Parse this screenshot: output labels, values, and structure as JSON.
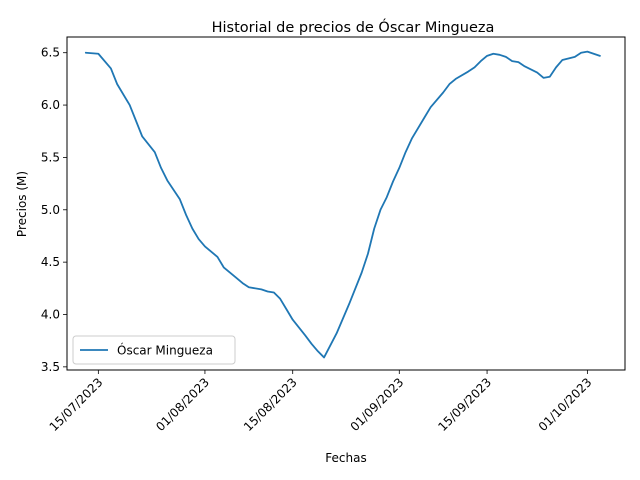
{
  "chart_data": {
    "type": "line",
    "title": "Historial de precios de Óscar Mingueza",
    "xlabel": "Fechas",
    "ylabel": "Precios (M)",
    "x_axis_type": "date",
    "x_range": [
      "2023-07-10",
      "2023-10-07"
    ],
    "ylim": [
      3.47,
      6.65
    ],
    "x_ticks": [
      {
        "date": "2023-07-15",
        "label": "15/07/2023"
      },
      {
        "date": "2023-08-01",
        "label": "01/08/2023"
      },
      {
        "date": "2023-08-15",
        "label": "15/08/2023"
      },
      {
        "date": "2023-09-01",
        "label": "01/09/2023"
      },
      {
        "date": "2023-09-15",
        "label": "15/09/2023"
      },
      {
        "date": "2023-10-01",
        "label": "01/10/2023"
      }
    ],
    "y_ticks": [
      {
        "value": 3.5,
        "label": "3.5"
      },
      {
        "value": 4.0,
        "label": "4.0"
      },
      {
        "value": 4.5,
        "label": "4.5"
      },
      {
        "value": 5.0,
        "label": "5.0"
      },
      {
        "value": 5.5,
        "label": "5.5"
      },
      {
        "value": 6.0,
        "label": "6.0"
      },
      {
        "value": 6.5,
        "label": "6.5"
      }
    ],
    "grid": false,
    "legend_position": "lower-left",
    "series": [
      {
        "name": "Óscar Mingueza",
        "color": "#1f77b4",
        "points": [
          [
            "2023-07-13",
            6.5
          ],
          [
            "2023-07-15",
            6.49
          ],
          [
            "2023-07-17",
            6.35
          ],
          [
            "2023-07-18",
            6.2
          ],
          [
            "2023-07-20",
            6.0
          ],
          [
            "2023-07-21",
            5.85
          ],
          [
            "2023-07-22",
            5.7
          ],
          [
            "2023-07-24",
            5.55
          ],
          [
            "2023-07-25",
            5.4
          ],
          [
            "2023-07-26",
            5.28
          ],
          [
            "2023-07-28",
            5.1
          ],
          [
            "2023-07-29",
            4.95
          ],
          [
            "2023-07-30",
            4.82
          ],
          [
            "2023-07-31",
            4.72
          ],
          [
            "2023-08-01",
            4.65
          ],
          [
            "2023-08-03",
            4.55
          ],
          [
            "2023-08-04",
            4.45
          ],
          [
            "2023-08-06",
            4.35
          ],
          [
            "2023-08-07",
            4.3
          ],
          [
            "2023-08-08",
            4.26
          ],
          [
            "2023-08-10",
            4.24
          ],
          [
            "2023-08-11",
            4.22
          ],
          [
            "2023-08-12",
            4.21
          ],
          [
            "2023-08-13",
            4.15
          ],
          [
            "2023-08-14",
            4.05
          ],
          [
            "2023-08-15",
            3.95
          ],
          [
            "2023-08-17",
            3.8
          ],
          [
            "2023-08-18",
            3.72
          ],
          [
            "2023-08-19",
            3.65
          ],
          [
            "2023-08-20",
            3.59
          ],
          [
            "2023-08-22",
            3.82
          ],
          [
            "2023-08-24",
            4.1
          ],
          [
            "2023-08-26",
            4.4
          ],
          [
            "2023-08-27",
            4.58
          ],
          [
            "2023-08-28",
            4.82
          ],
          [
            "2023-08-29",
            5.0
          ],
          [
            "2023-08-30",
            5.12
          ],
          [
            "2023-08-31",
            5.27
          ],
          [
            "2023-09-01",
            5.4
          ],
          [
            "2023-09-02",
            5.55
          ],
          [
            "2023-09-03",
            5.68
          ],
          [
            "2023-09-05",
            5.88
          ],
          [
            "2023-09-06",
            5.98
          ],
          [
            "2023-09-08",
            6.12
          ],
          [
            "2023-09-09",
            6.2
          ],
          [
            "2023-09-10",
            6.25
          ],
          [
            "2023-09-12",
            6.32
          ],
          [
            "2023-09-13",
            6.36
          ],
          [
            "2023-09-14",
            6.42
          ],
          [
            "2023-09-15",
            6.47
          ],
          [
            "2023-09-16",
            6.49
          ],
          [
            "2023-09-17",
            6.48
          ],
          [
            "2023-09-18",
            6.46
          ],
          [
            "2023-09-19",
            6.42
          ],
          [
            "2023-09-20",
            6.41
          ],
          [
            "2023-09-21",
            6.37
          ],
          [
            "2023-09-23",
            6.31
          ],
          [
            "2023-09-24",
            6.26
          ],
          [
            "2023-09-25",
            6.27
          ],
          [
            "2023-09-26",
            6.36
          ],
          [
            "2023-09-27",
            6.43
          ],
          [
            "2023-09-29",
            6.46
          ],
          [
            "2023-09-30",
            6.5
          ],
          [
            "2023-10-01",
            6.51
          ],
          [
            "2023-10-02",
            6.49
          ],
          [
            "2023-10-03",
            6.47
          ]
        ]
      }
    ]
  }
}
